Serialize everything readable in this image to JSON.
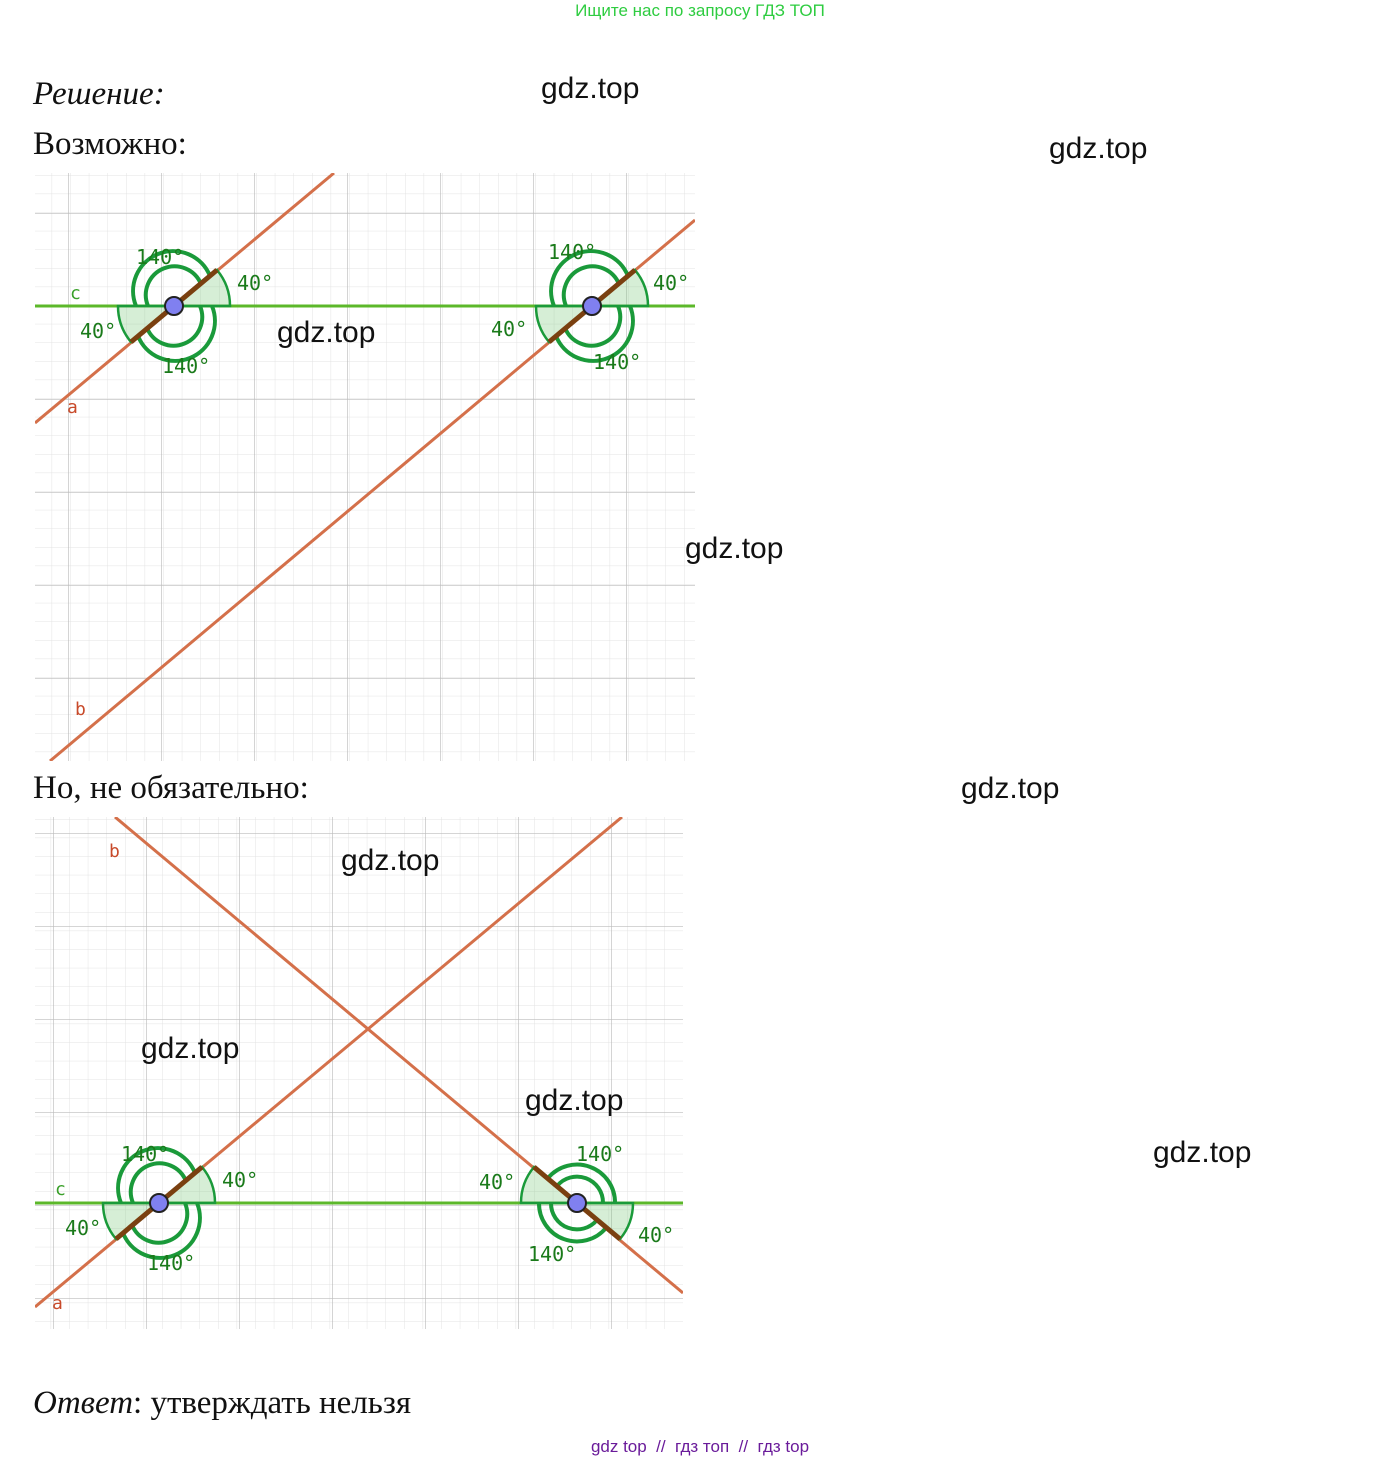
{
  "banner": "Ищите нас по запросу ГДЗ ТОП",
  "solution_label": "Решение:",
  "possible_label": "Возможно:",
  "not_necessarily_label": "Но, не обязательно:",
  "answer": {
    "label": "Ответ",
    "text": ": утверждать нельзя"
  },
  "watermark": "gdz.top",
  "footer": "gdz top  //  гдз топ  //  гдз top",
  "angles": {
    "obtuse": "140°",
    "acute": "40°"
  },
  "line_names": {
    "a": "a",
    "b": "b",
    "c": "c"
  },
  "colors": {
    "transversal": "#d4704a",
    "line_c": "#5cb82a",
    "arc": "#1a9a3a",
    "angle_text": "#1a7a1a",
    "point": "#8080f0",
    "footer": "#6a1b9a",
    "banner": "#2ecc40"
  }
}
